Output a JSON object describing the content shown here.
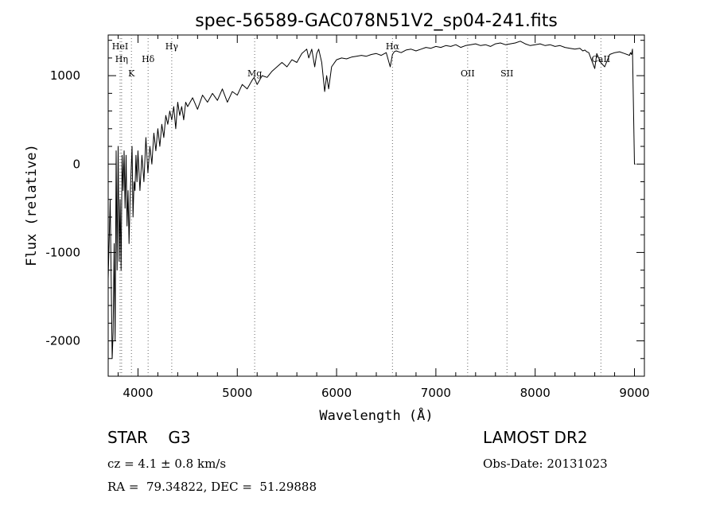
{
  "chart_data": {
    "type": "line",
    "title": "spec-56589-GAC078N51V2_sp04-241.fits",
    "xlabel": "Wavelength (Å)",
    "ylabel": "Flux (relative)",
    "xlim": [
      3700,
      9100
    ],
    "ylim": [
      -2400,
      1460
    ],
    "xticks": [
      4000,
      5000,
      6000,
      7000,
      8000,
      9000
    ],
    "yticks": [
      -2000,
      -1000,
      0,
      1000
    ],
    "grid": false,
    "line_color": "#000000",
    "series": [
      {
        "x": [
          3700,
          3720,
          3740,
          3750,
          3760,
          3770,
          3780,
          3790,
          3800,
          3810,
          3820,
          3830,
          3840,
          3850,
          3860,
          3870,
          3880,
          3890,
          3900,
          3910,
          3920,
          3930,
          3940,
          3950,
          3960,
          3970,
          3980,
          3990,
          4000,
          4020,
          4040,
          4060,
          4080,
          4100,
          4120,
          4140,
          4160,
          4180,
          4200,
          4220,
          4240,
          4260,
          4280,
          4300,
          4320,
          4340,
          4360,
          4380,
          4400,
          4420,
          4440,
          4460,
          4480,
          4500,
          4550,
          4600,
          4650,
          4700,
          4750,
          4800,
          4850,
          4900,
          4950,
          5000,
          5050,
          5100,
          5150,
          5170,
          5200,
          5250,
          5300,
          5350,
          5400,
          5450,
          5500,
          5550,
          5600,
          5650,
          5700,
          5720,
          5750,
          5780,
          5800,
          5820,
          5850,
          5880,
          5900,
          5920,
          5950,
          6000,
          6050,
          6100,
          6150,
          6200,
          6250,
          6300,
          6350,
          6400,
          6450,
          6500,
          6540,
          6563,
          6580,
          6600,
          6650,
          6700,
          6750,
          6800,
          6850,
          6900,
          6950,
          7000,
          7050,
          7100,
          7150,
          7200,
          7250,
          7300,
          7350,
          7400,
          7450,
          7500,
          7550,
          7600,
          7650,
          7700,
          7750,
          7800,
          7850,
          7900,
          7950,
          8000,
          8050,
          8100,
          8150,
          8200,
          8250,
          8300,
          8350,
          8400,
          8450,
          8480,
          8500,
          8520,
          8540,
          8560,
          8600,
          8620,
          8660,
          8700,
          8750,
          8800,
          8850,
          8900,
          8950,
          8960,
          8970,
          8980,
          9000,
          9010
        ],
        "y": [
          -1300,
          -400,
          -2200,
          -1900,
          -900,
          -2000,
          150,
          -1200,
          200,
          -1100,
          -400,
          -1200,
          100,
          -300,
          150,
          -500,
          100,
          -700,
          -300,
          -900,
          -400,
          -100,
          200,
          -600,
          -200,
          -300,
          100,
          -200,
          150,
          -300,
          100,
          -200,
          300,
          -100,
          200,
          0,
          350,
          150,
          400,
          200,
          450,
          300,
          550,
          450,
          600,
          500,
          650,
          400,
          700,
          550,
          650,
          500,
          700,
          650,
          750,
          620,
          780,
          700,
          800,
          720,
          850,
          700,
          820,
          780,
          900,
          850,
          950,
          980,
          900,
          1000,
          980,
          1050,
          1100,
          1150,
          1100,
          1180,
          1150,
          1250,
          1300,
          1200,
          1300,
          1100,
          1250,
          1300,
          1150,
          820,
          1000,
          850,
          1100,
          1180,
          1200,
          1190,
          1210,
          1220,
          1230,
          1220,
          1240,
          1250,
          1230,
          1260,
          1100,
          1240,
          1270,
          1280,
          1260,
          1290,
          1300,
          1280,
          1300,
          1320,
          1310,
          1330,
          1320,
          1340,
          1330,
          1350,
          1320,
          1340,
          1350,
          1360,
          1340,
          1350,
          1330,
          1360,
          1370,
          1350,
          1360,
          1370,
          1390,
          1360,
          1340,
          1350,
          1360,
          1340,
          1350,
          1330,
          1340,
          1320,
          1310,
          1300,
          1310,
          1280,
          1290,
          1270,
          1260,
          1200,
          1080,
          1250,
          1150,
          1100,
          1240,
          1260,
          1270,
          1250,
          1230,
          1260,
          1240,
          1300,
          0,
          0
        ]
      }
    ],
    "lines": [
      {
        "label": "HeI",
        "x": 3820,
        "dy": 0
      },
      {
        "label": "Hη",
        "x": 3835,
        "dy": 1
      },
      {
        "label": "K",
        "x": 3934,
        "dy": 2
      },
      {
        "label": "Hδ",
        "x": 4102,
        "dy": 1
      },
      {
        "label": "Hγ",
        "x": 4340,
        "dy": 0
      },
      {
        "label": "Mg",
        "x": 5175,
        "dy": 2
      },
      {
        "label": "Hα",
        "x": 6563,
        "dy": 0
      },
      {
        "label": "OII",
        "x": 7320,
        "dy": 2
      },
      {
        "label": "SII",
        "x": 7716,
        "dy": 2
      },
      {
        "label": "CaII",
        "x": 8662,
        "dy": 1
      }
    ]
  },
  "info": {
    "class_label": "STAR    G3",
    "cz": "cz = 4.1 ± 0.8 km/s",
    "radec": "RA =  79.34822, DEC =  51.29888",
    "survey": "LAMOST DR2",
    "obs_date": "Obs-Date: 20131023"
  }
}
